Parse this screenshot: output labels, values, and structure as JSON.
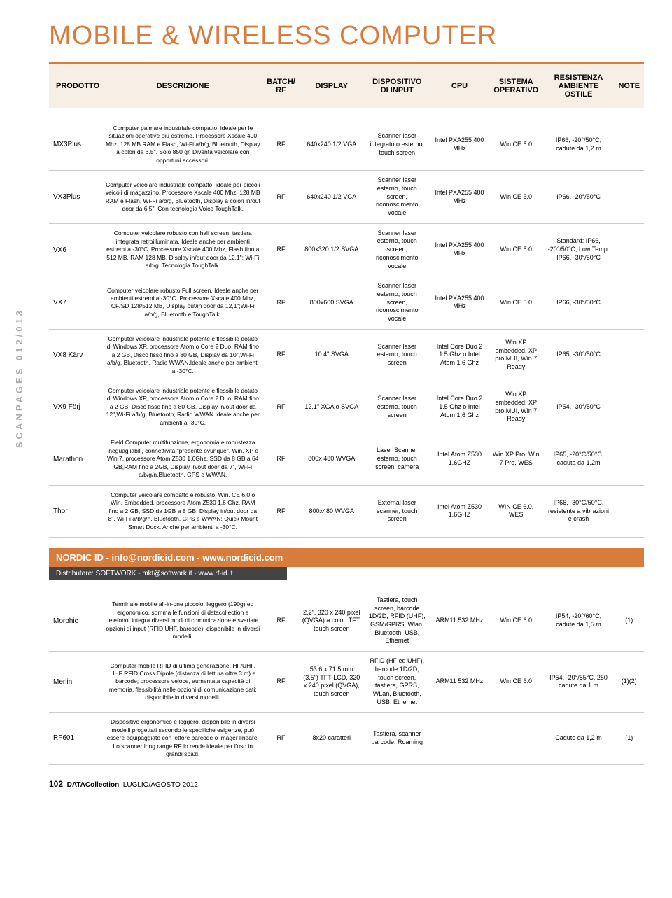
{
  "sidebar": "SCANPAGES 012/013",
  "title": "MOBILE & WIRELESS COMPUTER",
  "headers": [
    "PRODOTTO",
    "DESCRIZIONE",
    "BATCH/\nRF",
    "DISPLAY",
    "DISPOSITIVO\nDI INPUT",
    "CPU",
    "SISTEMA\nOPERATIVO",
    "RESISTENZA\nAMBIENTE\nOSTILE",
    "NOTE"
  ],
  "rows1": [
    {
      "prod": "MX3Plus",
      "desc": "Computer palmare industriale compatto, ideale per le situazioni operative più estreme. Processore Xscale 400 Mhz, 128 MB RAM e Flash, Wi-Fi a/b/g, Bluetooth, Display a colori da 6.5\". Solo 850 gr. Diventa veicolare con opportuni accessori.",
      "brf": "RF",
      "disp": "640x240 1/2 VGA",
      "inp": "Scanner laser integrato o esterno, touch screen",
      "cpu": "Intel PXA255 400 MHz",
      "os": "Win CE 5.0",
      "res": "IP66, -20°/50°C, cadute da 1,2 m",
      "note": ""
    },
    {
      "prod": "VX3Plus",
      "desc": "Computer veicolare industriale compatto, ideale per piccoli veicoli di magazzino. Processore Xscale 400 Mhz, 128 MB RAM e Flash, Wi-Fi a/b/g, Bluetooth, Display a colori in/out door da 6.5\". Con tecnologia Voice ToughTalk.",
      "brf": "RF",
      "disp": "640x240 1/2 VGA",
      "inp": "Scanner laser esterno, touch screen, riconoscimento vocale",
      "cpu": "Intel PXA255 400 MHz",
      "os": "Win CE 5.0",
      "res": "IP66, -20°/50°C",
      "note": ""
    },
    {
      "prod": "VX6",
      "desc": "Computer veicolare robusto con half screen, tastiera integrata retroilluminata. Ideale anche per ambienti estremi a -30°C. Processore Xscale 400 Mhz, Flash fino a 512 MB, RAM 128 MB, Display in/out door da 12,1\"; Wi-Fi a/b/g. Tecnologia ToughTalk.",
      "brf": "RF",
      "disp": "800x320 1/2 SVGA",
      "inp": "Scanner laser esterno, touch screen, riconoscimento vocale",
      "cpu": "Intel PXA255 400 MHz",
      "os": "Win CE 5.0",
      "res": "Standard: IP66, -20°/50°C; Low Temp: IP66, -30°/50°C",
      "note": ""
    },
    {
      "prod": "VX7",
      "desc": "Computer veicolare robusto Full screen. Ideale anche per ambienti estremi a -30°C. Processore Xscale 400 Mhz, CF/SD 128/512 MB, Display out/in door da 12,1\";Wi-Fi a/b/g, Bluetooth e ToughTalk.",
      "brf": "RF",
      "disp": "800x600 SVGA",
      "inp": "Scanner laser esterno, touch screen, riconoscimento vocale",
      "cpu": "Intel PXA255 400 MHz",
      "os": "Win CE 5.0",
      "res": "IP66, -30°/50°C",
      "note": ""
    },
    {
      "prod": "VX8 Kärv",
      "desc": "Computer veicolare industriale potente e flessibile dotato di Windows XP, processore Atom o Core 2 Duo, RAM fino a 2 GB, Disco fisso fino a 80 GB, Display da 10\",Wi-Fi a/b/g, Bluetooth, Radio WWAN.Ideale anche per ambienti a -30°C.",
      "brf": "RF",
      "disp": "10.4\" SVGA",
      "inp": "Scanner laser esterno, touch screen",
      "cpu": "Intel Core Duo 2 1.5 Ghz o Intel Atom 1.6 Ghz",
      "os": "Win XP embedded, XP pro MUI, Win 7 Ready",
      "res": "IP65, -30°/50°C",
      "note": ""
    },
    {
      "prod": "VX9 Förj",
      "desc": "Computer veicolare industriale potente e flessibile dotato di Windows XP, processore Atom o Core 2 Duo, RAM fino a 2 GB, Disco fisso fino a 80 GB, Display in/out door da 12\",Wi-Fi a/b/g, Bluetooth, Radio WWAN.Ideale anche per ambienti a -30°C.",
      "brf": "RF",
      "disp": "12.1\" XGA o SVGA",
      "inp": "Scanner laser esterno, touch screen",
      "cpu": "Intel Core Duo 2 1.5 Ghz o Intel Atom 1.6 Ghz",
      "os": "Win XP embedded, XP pro MUI, Win 7 Ready",
      "res": "IP54, -30°/50°C",
      "note": ""
    },
    {
      "prod": "Marathon",
      "desc": "Field Computer multifunzione, ergonomia e robustezza ineguagliabili, connettività \"presente ovunque\". Win. XP o Win 7, processore Atom Z530 1.6Ghz, SSD da 8 GB a 64 GB,RAM fino a 2GB, Display in/out door da 7\", Wi-Fi a/b/g/n,Bluetooth, GPS e WWAN.",
      "brf": "RF",
      "disp": "800x 480 WVGA",
      "inp": "Laser Scanner esterno, touch screen, camera",
      "cpu": "Intel Atom Z530 1.6GHZ",
      "os": "Win XP Pro, Win 7 Pro, WES",
      "res": "IP65, -20°C/50°C, caduta da 1.2m",
      "note": ""
    },
    {
      "prod": "Thor",
      "desc": "Computer veicolare compatto e robusto. Win. CE 6.0 o Win. Embedded, processore Atom Z530 1.6 Ghz, RAM fino a 2 GB, SSD da 1GB a 8 GB, Display in/out door da 8\", Wi-Fi a/b/g/n, Bluetooth, GPS e WWAN; Quick Mount Smart Dock. Anche per ambienti a -30°C.",
      "brf": "RF",
      "disp": "800x480 WVGA",
      "inp": "External laser scanner, touch screen",
      "cpu": "Intel Atom Z530 1.6GHZ",
      "os": "WIN CE 6.0, WES",
      "res": "IP66, -30°C/50°C, resistente a vibrazioni e crash",
      "note": ""
    }
  ],
  "section": "NORDIC ID - info@nordicid.com - www.nordicid.com",
  "distributor": "Distributore: SOFTWORK - mkt@softwork.it - www.rf-id.it",
  "rows2": [
    {
      "prod": "Morphic",
      "desc": "Terminale mobile all-in-one piccolo, leggero (190g) ed ergonomico, somma le funzioni di datacollection e telefono; integra diversi modi di comunicazione e svariate opzioni di input (RFID UHF, barcode); disponibile in diversi modelli.",
      "brf": "RF",
      "disp": "2,2\", 320 x 240 pixel (QVGA) a colori TFT, touch screen",
      "inp": "Tastiera, touch screen, barcode 1D/2D, RFID (UHF), GSM/GPRS, Wlan, Bluetooth, USB, Ethernet",
      "cpu": "ARM11 532 MHz",
      "os": "Win CE 6.0",
      "res": "IP54, -20°/60°C, cadute da 1,5 m",
      "note": "(1)"
    },
    {
      "prod": "Merlin",
      "desc": "Computer mobile RFID di ultima generazione: HF/UHF, UHF RFID Cross Dipole (distanza di lettura oltre 3 m) e barcode; processore veloce, aumentata capacità di memoria, flessibilità nelle opzioni di comunicazione dati; disponibile in diversi modelli.",
      "brf": "RF",
      "disp": "53.6 x 71.5 mm (3.5\") TFT-LCD, 320 x 240 pixel (QVGA), touch screen",
      "inp": "RFID (HF ed UHF), barcode 1D/2D, touch screen, tastiera, GPRS, WLan, Bluetooth, USB, Ethernet",
      "cpu": "ARM11 532 MHz",
      "os": "Win CE 6.0",
      "res": "IP54, -20°/55°C, 250 cadute da 1 m",
      "note": "(1)(2)"
    },
    {
      "prod": "RF601",
      "desc": "Dispositivo ergonomico e leggero, disponibile in diversi modelli progettati secondo le specifiche esigenze, può essere equipaggiato con lettore barcode o imager lineare. Lo scanner long range RF lo rende ideale per l'uso in grandi spazi.",
      "brf": "RF",
      "disp": "8x20 caratteri",
      "inp": "Tastiera, scanner barcode, Roaming",
      "cpu": "",
      "os": "",
      "res": "Cadute da 1,2 m",
      "note": "(1)"
    }
  ],
  "footer": {
    "page": "102",
    "mag": "DATACollection",
    "date": "LUGLIO/AGOSTO 2012"
  }
}
